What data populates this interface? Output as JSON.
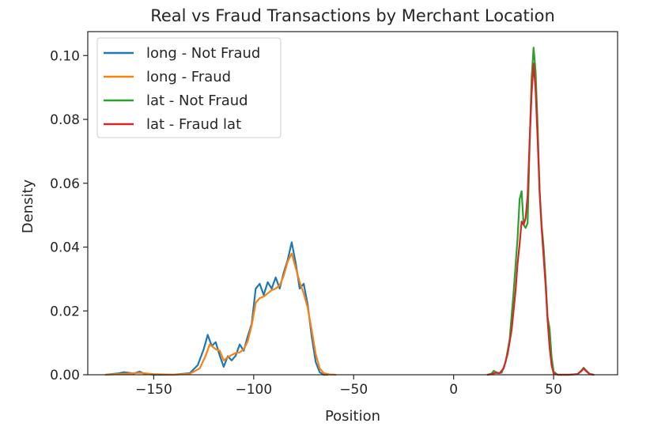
{
  "chart_data": {
    "type": "line",
    "title": "Real vs Fraud Transactions by Merchant Location",
    "xlabel": "Position",
    "ylabel": "Density",
    "xlim": [
      -183,
      82
    ],
    "ylim": [
      0,
      0.1075
    ],
    "xticks": [
      -150,
      -100,
      -50,
      0,
      50
    ],
    "yticks": [
      0.0,
      0.02,
      0.04,
      0.06,
      0.08,
      0.1
    ],
    "xtick_labels": [
      "−150",
      "−100",
      "−50",
      "0",
      "50"
    ],
    "ytick_labels": [
      "0.00",
      "0.02",
      "0.04",
      "0.06",
      "0.08",
      "0.10"
    ],
    "grid": false,
    "legend_position": "upper-left",
    "series": [
      {
        "name": "long - Not Fraud",
        "color": "#1f77b4",
        "x": [
          -174,
          -168,
          -165,
          -160,
          -157,
          -155,
          -150,
          -140,
          -132,
          -128,
          -125,
          -123,
          -121,
          -119,
          -117,
          -115,
          -113,
          -111,
          -109,
          -107,
          -105,
          -103,
          -101,
          -99,
          -97,
          -95,
          -93,
          -91,
          -89,
          -87,
          -85,
          -83,
          -81,
          -79,
          -77,
          -75,
          -73,
          -71,
          -69,
          -67,
          -65,
          -63
        ],
        "y": [
          0.0,
          0.0004,
          0.0008,
          0.0004,
          0.001,
          0.0004,
          0.0,
          0.0,
          0.0005,
          0.003,
          0.008,
          0.0125,
          0.009,
          0.0102,
          0.006,
          0.0025,
          0.0058,
          0.0045,
          0.006,
          0.0095,
          0.0075,
          0.012,
          0.016,
          0.027,
          0.0285,
          0.025,
          0.029,
          0.027,
          0.0305,
          0.027,
          0.032,
          0.036,
          0.0415,
          0.035,
          0.027,
          0.0285,
          0.022,
          0.012,
          0.004,
          0.0008,
          0.0,
          0.0
        ]
      },
      {
        "name": "long - Fraud",
        "color": "#ff7f0e",
        "x": [
          -174,
          -165,
          -157,
          -150,
          -140,
          -132,
          -127,
          -124,
          -122,
          -119,
          -117,
          -115,
          -113,
          -111,
          -109,
          -107,
          -105,
          -103,
          -101,
          -99,
          -97,
          -95,
          -93,
          -91,
          -89,
          -87,
          -85,
          -83,
          -81,
          -79,
          -77,
          -75,
          -73,
          -71,
          -69,
          -67,
          -65,
          -62,
          -59
        ],
        "y": [
          0.0,
          0.0003,
          0.0006,
          0.0002,
          0.0,
          0.0003,
          0.002,
          0.006,
          0.0095,
          0.008,
          0.0075,
          0.0045,
          0.0055,
          0.0062,
          0.0068,
          0.007,
          0.008,
          0.0105,
          0.0155,
          0.0225,
          0.024,
          0.0245,
          0.0255,
          0.0265,
          0.027,
          0.028,
          0.031,
          0.0355,
          0.038,
          0.0335,
          0.029,
          0.0255,
          0.021,
          0.014,
          0.0065,
          0.002,
          0.0005,
          0.0001,
          0.0
        ]
      },
      {
        "name": "lat - Not Fraud",
        "color": "#2ca02c",
        "x": [
          17,
          19,
          20,
          22,
          24,
          26,
          28,
          30,
          32,
          33,
          34,
          35,
          36,
          37,
          38,
          39,
          40,
          41,
          42,
          43,
          44,
          45,
          46,
          47,
          48,
          49,
          50,
          52,
          58,
          62,
          64,
          65,
          66,
          68,
          70
        ],
        "y": [
          0.0,
          0.0004,
          0.0012,
          0.0006,
          0.0006,
          0.004,
          0.011,
          0.026,
          0.043,
          0.055,
          0.0575,
          0.047,
          0.046,
          0.0475,
          0.072,
          0.093,
          0.1025,
          0.095,
          0.078,
          0.058,
          0.047,
          0.04,
          0.03,
          0.018,
          0.0145,
          0.0055,
          0.001,
          0.0,
          0.0,
          0.0002,
          0.0014,
          0.0022,
          0.0015,
          0.0003,
          0.0
        ]
      },
      {
        "name": "lat - Fraud lat",
        "color": "#d62728",
        "x": [
          17,
          19,
          21,
          23,
          25,
          27,
          29,
          31,
          32,
          33,
          34,
          35,
          36,
          37,
          38,
          39,
          40,
          41,
          42,
          43,
          44,
          45,
          46,
          47,
          48,
          49,
          50,
          52,
          58,
          62,
          64,
          65,
          66,
          68,
          70
        ],
        "y": [
          0.0,
          0.0002,
          0.0006,
          0.0005,
          0.002,
          0.0065,
          0.014,
          0.0265,
          0.035,
          0.041,
          0.048,
          0.047,
          0.049,
          0.056,
          0.073,
          0.088,
          0.0975,
          0.089,
          0.074,
          0.057,
          0.046,
          0.037,
          0.028,
          0.017,
          0.0085,
          0.003,
          0.0004,
          0.0,
          0.0,
          0.0002,
          0.0012,
          0.002,
          0.0013,
          0.0002,
          0.0
        ]
      }
    ]
  }
}
